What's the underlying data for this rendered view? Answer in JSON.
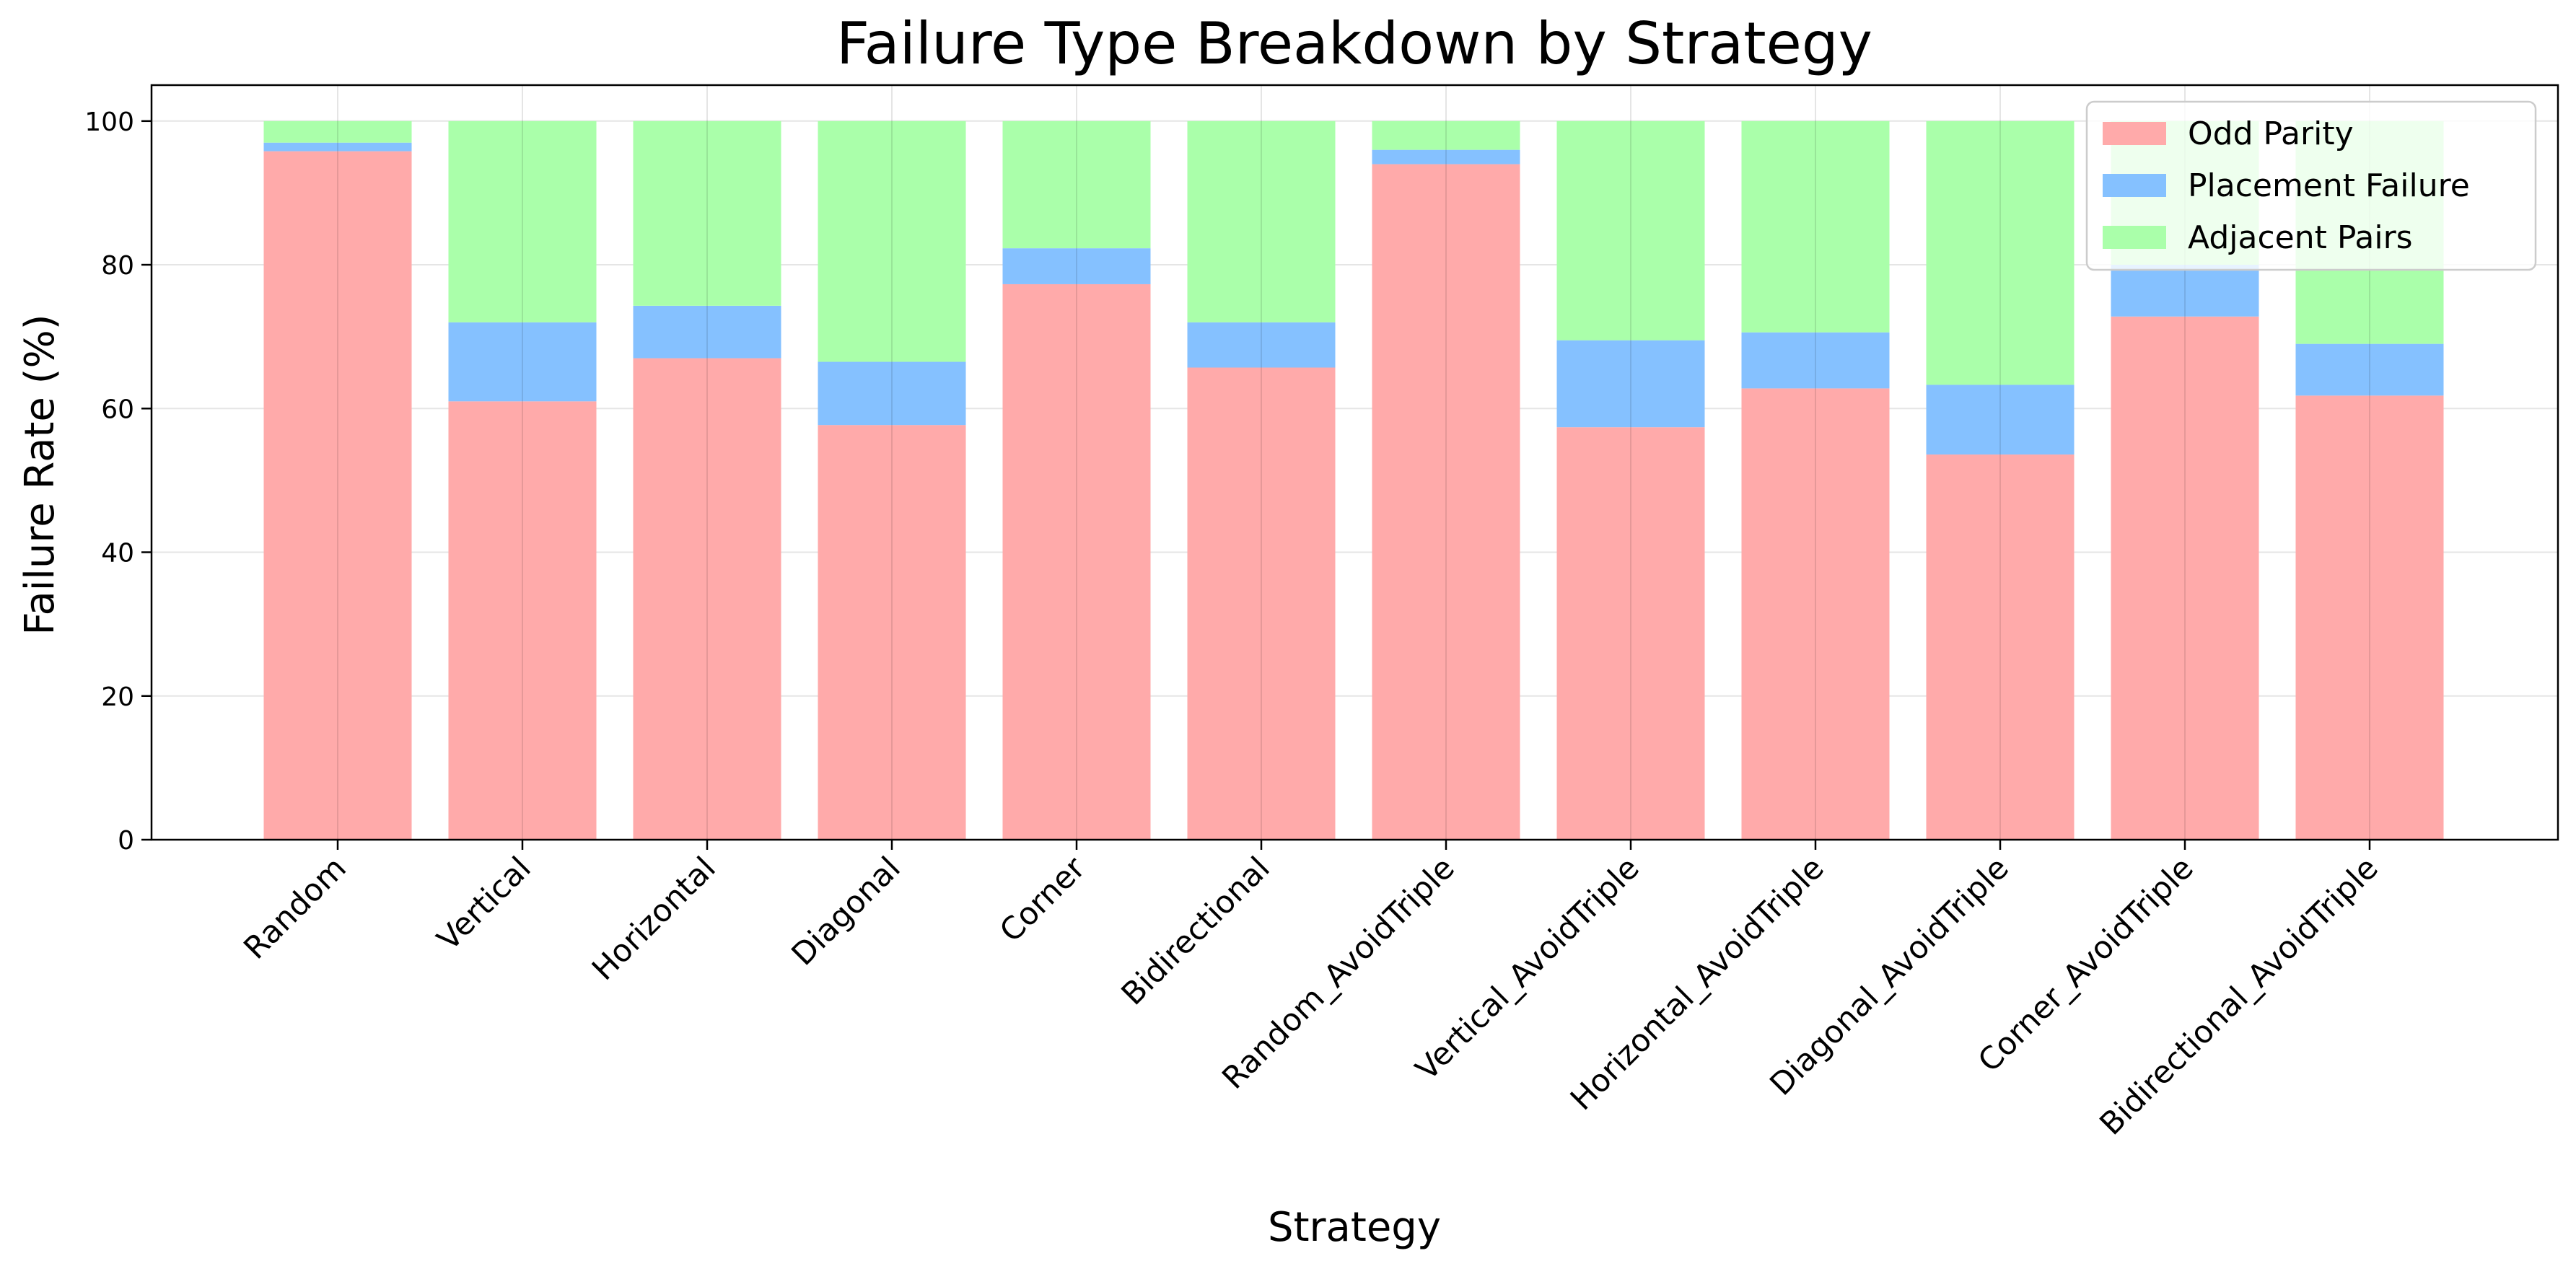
{
  "chart_data": {
    "type": "bar",
    "stacked": true,
    "title": "Failure Type Breakdown by Strategy",
    "xlabel": "Strategy",
    "ylabel": "Failure Rate (%)",
    "ylim": [
      0,
      105
    ],
    "yticks": [
      0,
      20,
      40,
      60,
      80,
      100
    ],
    "grid": true,
    "legend_position": "top-right",
    "categories": [
      "Random",
      "Vertical",
      "Horizontal",
      "Diagonal",
      "Corner",
      "Bidirectional",
      "Random_AvoidTriple",
      "Vertical_AvoidTriple",
      "Horizontal_AvoidTriple",
      "Diagonal_AvoidTriple",
      "Corner_AvoidTriple",
      "Bidirectional_AvoidTriple"
    ],
    "series": [
      {
        "name": "Odd Parity",
        "color": "#ffaaaa",
        "values": [
          95.8,
          61.0,
          67.0,
          57.7,
          77.3,
          65.7,
          94.0,
          57.4,
          62.8,
          53.6,
          72.8,
          61.8
        ]
      },
      {
        "name": "Placement Failure",
        "color": "#85c1ff",
        "values": [
          1.2,
          11.0,
          7.3,
          8.8,
          5.0,
          6.3,
          2.0,
          12.1,
          7.8,
          9.7,
          7.2,
          7.2
        ]
      },
      {
        "name": "Adjacent Pairs",
        "color": "#aaffaa",
        "values": [
          3.0,
          28.0,
          25.7,
          33.5,
          17.7,
          28.0,
          4.0,
          30.5,
          29.4,
          36.7,
          20.0,
          31.0
        ]
      }
    ]
  }
}
